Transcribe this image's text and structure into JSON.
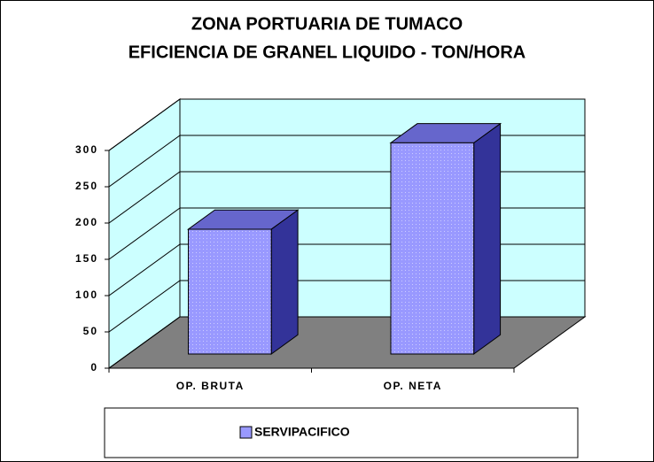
{
  "chart_data": {
    "type": "bar3d",
    "title": [
      "ZONA PORTUARIA DE TUMACO",
      "EFICIENCIA DE GRANEL LIQUIDO - TON/HORA"
    ],
    "categories": [
      "OP. BRUTA",
      "OP. NETA"
    ],
    "series": [
      {
        "name": "SERVIPACIFICO",
        "color": "#9999ff",
        "values": [
          172,
          291
        ]
      }
    ],
    "ylim": [
      0,
      300
    ],
    "yticks": [
      0,
      50,
      100,
      150,
      200,
      250,
      300
    ],
    "grid": true,
    "legend": "bottom"
  }
}
